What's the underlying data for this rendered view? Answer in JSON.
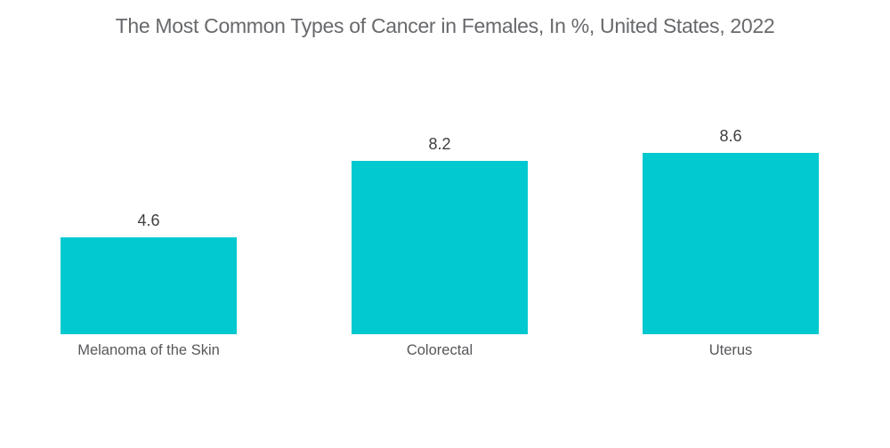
{
  "chart_data": {
    "type": "bar",
    "title": "The Most Common Types of Cancer in Females, In %, United States, 2022",
    "categories": [
      "Melanoma of the Skin",
      "Colorectal",
      "Uterus"
    ],
    "values": [
      4.6,
      8.2,
      8.6
    ],
    "xlabel": "",
    "ylabel": "",
    "ylim": [
      0,
      8.6
    ],
    "unit": "%",
    "grid": false,
    "legend": "none",
    "value_labels_position": "above",
    "bar_color": "#02c8cf",
    "title_color": "#67696c",
    "value_label_color": "#3d3e40",
    "category_label_color": "#55575a",
    "background_color": "#ffffff"
  }
}
